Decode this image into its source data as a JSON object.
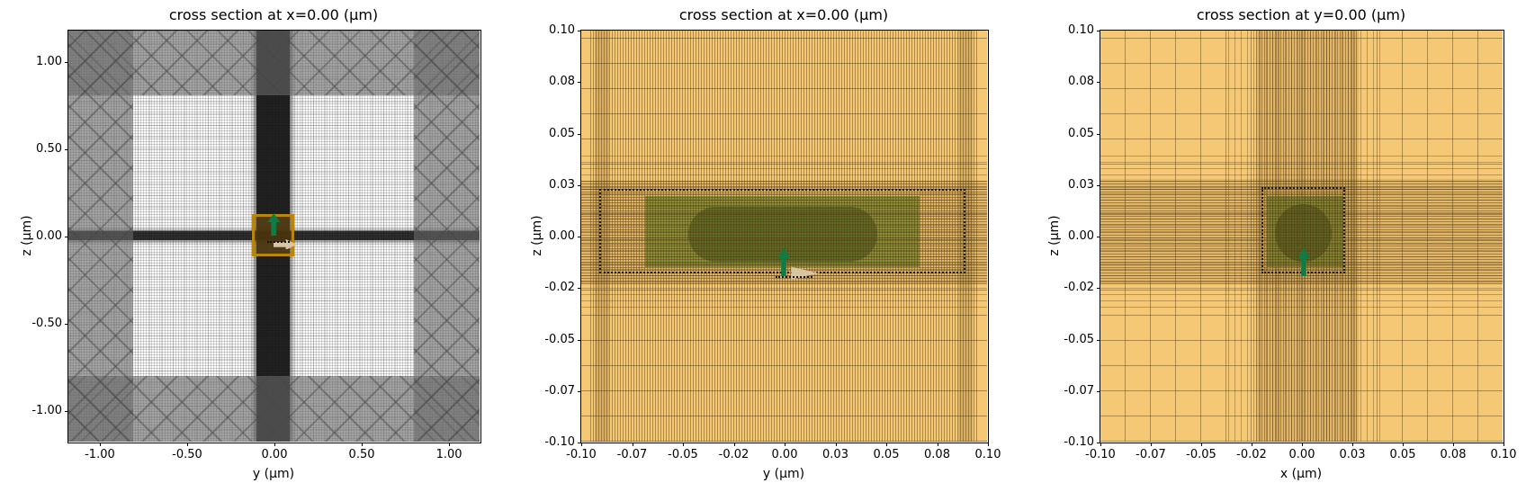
{
  "figure": {
    "background": "#ffffff"
  },
  "colors": {
    "pml_gray": "#696969",
    "mesh_gold": "#f5c876",
    "mode_plane_amber": "#b8860b",
    "structure_green": "#7a9132",
    "core_dark_green": "#4a6a26",
    "source_green": "#117b45",
    "propagation_tan": "#d8c5a4"
  },
  "panels": [
    {
      "id": "left",
      "title": "cross section at x=0.00 (μm)",
      "xlabel": "y (μm)",
      "ylabel": "z (μm)",
      "xlim": [
        -1.18,
        1.18
      ],
      "ylim": [
        -1.18,
        1.18
      ],
      "xticks": [
        {
          "v": -1.0,
          "l": "-1.00"
        },
        {
          "v": -0.5,
          "l": "-0.50"
        },
        {
          "v": 0.0,
          "l": "0.00"
        },
        {
          "v": 0.5,
          "l": "0.50"
        },
        {
          "v": 1.0,
          "l": "1.00"
        }
      ],
      "yticks": [
        {
          "v": -1.0,
          "l": "-1.00"
        },
        {
          "v": -0.5,
          "l": "-0.50"
        },
        {
          "v": 0.0,
          "l": "0.00"
        },
        {
          "v": 0.5,
          "l": "0.50"
        },
        {
          "v": 1.0,
          "l": "1.00"
        }
      ],
      "shapes": [
        {
          "name": "dense-mesh-vertical-strip",
          "t": "band",
          "cls": "p1-vstrip",
          "x": [
            -0.098,
            0.095
          ],
          "z": [
            -1.18,
            1.18
          ]
        },
        {
          "name": "dense-mesh-horizontal-strip",
          "t": "band",
          "cls": "p1-hstrip",
          "x": [
            -1.18,
            1.18
          ],
          "z": [
            -0.026,
            0.027
          ]
        },
        {
          "name": "mode-plane-box",
          "t": "rect",
          "cls": "p1-amber",
          "x": [
            -0.122,
            0.117
          ],
          "z": [
            -0.118,
            0.125
          ]
        },
        {
          "name": "pml-boundary-top",
          "t": "band",
          "cls": "pml",
          "x": [
            -1.18,
            1.18
          ],
          "z": [
            0.805,
            1.18
          ]
        },
        {
          "name": "pml-boundary-bottom",
          "t": "band",
          "cls": "pml",
          "x": [
            -1.18,
            1.18
          ],
          "z": [
            -1.18,
            -0.805
          ]
        },
        {
          "name": "pml-boundary-left",
          "t": "band",
          "cls": "pml",
          "x": [
            -1.18,
            -0.805
          ],
          "z": [
            -1.18,
            1.18
          ]
        },
        {
          "name": "pml-boundary-right",
          "t": "band",
          "cls": "pml",
          "x": [
            0.805,
            1.18
          ],
          "z": [
            -1.18,
            1.18
          ]
        },
        {
          "name": "propagation-arrow",
          "t": "arrow-right",
          "color": "#d8c5a4",
          "x": [
            0.002,
            0.137
          ],
          "z": [
            -0.063,
            -0.002
          ]
        },
        {
          "name": "propagation-dotted-line",
          "t": "dotline",
          "cls": "dotline",
          "x": [
            -0.036,
            0.092
          ],
          "z": [
            -0.031,
            -0.031
          ]
        },
        {
          "name": "source-polarization-arrow",
          "t": "arrow-up",
          "color": "#117b45",
          "x": [
            -0.038,
            0.037
          ],
          "z": [
            -0.002,
            0.127
          ]
        }
      ]
    },
    {
      "id": "middle",
      "title": "cross section at x=0.00 (μm)",
      "xlabel": "y (μm)",
      "ylabel": "z (μm)",
      "xlim": [
        -0.1,
        0.1
      ],
      "ylim": [
        -0.1,
        0.1
      ],
      "xticks": [
        {
          "v": -0.1,
          "l": "-0.10"
        },
        {
          "v": -0.075,
          "l": "-0.07"
        },
        {
          "v": -0.05,
          "l": "-0.05"
        },
        {
          "v": -0.025,
          "l": "-0.02"
        },
        {
          "v": 0.0,
          "l": "0.00"
        },
        {
          "v": 0.025,
          "l": "0.03"
        },
        {
          "v": 0.05,
          "l": "0.05"
        },
        {
          "v": 0.075,
          "l": "0.08"
        },
        {
          "v": 0.1,
          "l": "0.10"
        }
      ],
      "yticks": [
        {
          "v": -0.1,
          "l": "-0.10"
        },
        {
          "v": -0.075,
          "l": "-0.07"
        },
        {
          "v": -0.05,
          "l": "-0.05"
        },
        {
          "v": -0.025,
          "l": "-0.02"
        },
        {
          "v": 0.0,
          "l": "0.00"
        },
        {
          "v": 0.025,
          "l": "0.03"
        },
        {
          "v": 0.05,
          "l": "0.05"
        },
        {
          "v": 0.075,
          "l": "0.08"
        },
        {
          "v": 0.1,
          "l": "0.10"
        }
      ],
      "shapes": [
        {
          "name": "waveguide-slab",
          "t": "rect",
          "cls": "slab",
          "x": [
            -0.068,
            0.067
          ],
          "z": [
            -0.0155,
            0.019
          ]
        },
        {
          "name": "waveguide-core-stadium",
          "t": "rect",
          "cls": "stadium",
          "x": [
            -0.047,
            0.046
          ],
          "z": [
            -0.0125,
            0.014
          ]
        },
        {
          "name": "fine-mesh-region",
          "t": "band",
          "cls": "p2-vfine",
          "x": [
            -0.0952,
            0.0952
          ],
          "z": [
            -0.1,
            0.1
          ]
        },
        {
          "name": "graded-mesh-column-left",
          "t": "band",
          "cls": "p2-vgrad",
          "x": [
            -0.093,
            -0.086
          ],
          "z": [
            -0.1,
            0.1
          ]
        },
        {
          "name": "graded-mesh-column-right",
          "t": "band",
          "cls": "p2-vgrad",
          "x": [
            0.086,
            0.093
          ],
          "z": [
            -0.1,
            0.1
          ]
        },
        {
          "name": "coarse-horizontal-mesh",
          "t": "band",
          "cls": "p2-hsparse",
          "x": [
            -0.1,
            0.1
          ],
          "z": [
            -0.1,
            0.1
          ]
        },
        {
          "name": "graded-mesh-band",
          "t": "band",
          "cls": "p2-hmed",
          "x": [
            -0.1,
            0.1
          ],
          "z": [
            -0.035,
            0.04
          ]
        },
        {
          "name": "dense-mesh-band",
          "t": "band",
          "cls": "p2-hdense",
          "x": [
            -0.1,
            0.1
          ],
          "z": [
            -0.0235,
            0.0265
          ]
        },
        {
          "name": "mesh-override-outline",
          "t": "rect",
          "cls": "dotted",
          "x": [
            -0.0905,
            0.0895
          ],
          "z": [
            -0.0185,
            0.0225
          ]
        },
        {
          "name": "propagation-arrowhead",
          "t": "tri-right",
          "color": "#d8c5a4",
          "x": [
            0.003,
            0.0175
          ],
          "z": [
            -0.0215,
            -0.0148
          ]
        },
        {
          "name": "propagation-dotted-line",
          "t": "dotline",
          "cls": "dotline",
          "x": [
            -0.004,
            0.014
          ],
          "z": [
            -0.0195,
            -0.0195
          ]
        },
        {
          "name": "source-polarization-arrow",
          "t": "arrow-up",
          "color": "#117b45",
          "x": [
            -0.0031,
            0.0031
          ],
          "z": [
            -0.0195,
            -0.0055
          ]
        }
      ]
    },
    {
      "id": "right",
      "title": "cross section at y=0.00 (μm)",
      "xlabel": "x (μm)",
      "ylabel": "z (μm)",
      "xlim": [
        -0.1,
        0.1
      ],
      "ylim": [
        -0.1,
        0.1
      ],
      "xticks": [
        {
          "v": -0.1,
          "l": "-0.10"
        },
        {
          "v": -0.075,
          "l": "-0.07"
        },
        {
          "v": -0.05,
          "l": "-0.05"
        },
        {
          "v": -0.025,
          "l": "-0.02"
        },
        {
          "v": 0.0,
          "l": "0.00"
        },
        {
          "v": 0.025,
          "l": "0.03"
        },
        {
          "v": 0.05,
          "l": "0.05"
        },
        {
          "v": 0.075,
          "l": "0.08"
        },
        {
          "v": 0.1,
          "l": "0.10"
        }
      ],
      "yticks": [
        {
          "v": -0.1,
          "l": "-0.10"
        },
        {
          "v": -0.075,
          "l": "-0.07"
        },
        {
          "v": -0.05,
          "l": "-0.05"
        },
        {
          "v": -0.025,
          "l": "-0.02"
        },
        {
          "v": 0.0,
          "l": "0.00"
        },
        {
          "v": 0.025,
          "l": "0.03"
        },
        {
          "v": 0.05,
          "l": "0.05"
        },
        {
          "v": 0.075,
          "l": "0.08"
        },
        {
          "v": 0.1,
          "l": "0.10"
        }
      ],
      "shapes": [
        {
          "name": "cladding-square",
          "t": "rect",
          "cls": "slab",
          "x": [
            -0.017,
            0.021
          ],
          "z": [
            -0.0155,
            0.019
          ]
        },
        {
          "name": "core-circle",
          "t": "rect",
          "cls": "circle",
          "x": [
            -0.013,
            0.015
          ],
          "z": [
            -0.0125,
            0.0155
          ]
        },
        {
          "name": "graded-mesh-column",
          "t": "band",
          "cls": "p3-vmed",
          "x": [
            -0.036,
            0.042
          ],
          "z": [
            -0.1,
            0.1
          ]
        },
        {
          "name": "dense-mesh-column",
          "t": "band",
          "cls": "p3-vdense",
          "x": [
            -0.0225,
            0.0285
          ],
          "z": [
            -0.1,
            0.1
          ]
        },
        {
          "name": "graded-mesh-band",
          "t": "band",
          "cls": "p3-hmed",
          "x": [
            -0.1,
            0.1
          ],
          "z": [
            -0.035,
            0.04
          ]
        },
        {
          "name": "dense-mesh-band",
          "t": "band",
          "cls": "p3-hdense",
          "x": [
            -0.1,
            0.1
          ],
          "z": [
            -0.0235,
            0.0275
          ]
        },
        {
          "name": "mesh-override-outline",
          "t": "rect",
          "cls": "dotted",
          "x": [
            -0.0195,
            0.022
          ],
          "z": [
            -0.0185,
            0.0235
          ]
        },
        {
          "name": "source-polarization-arrow",
          "t": "arrow-up",
          "color": "#117b45",
          "x": [
            -0.002,
            0.0042
          ],
          "z": [
            -0.0195,
            -0.0055
          ]
        }
      ]
    }
  ],
  "chart_data": [
    {
      "type": "heatmap",
      "subtype": "simulation-cross-section-with-mesh",
      "title": "cross section at x=0.00 (μm)",
      "xlabel": "y (μm)",
      "ylabel": "z (μm)",
      "xlim": [
        -1.18,
        1.18
      ],
      "ylim": [
        -1.18,
        1.18
      ],
      "xtick_labels": [
        "-1.00",
        "-0.50",
        "0.00",
        "0.50",
        "1.00"
      ],
      "ytick_labels": [
        "-1.00",
        "-0.50",
        "0.00",
        "0.50",
        "1.00"
      ],
      "grid": "nonuniform FDTD mesh, fine cells near structure",
      "regions": [
        {
          "name": "pml-absorber-frame",
          "extent": "|y|>0.8 and |z|>0.8 to plot edge",
          "style": "gray crosshatch, darker at corners"
        },
        {
          "name": "dense-mesh-vertical-strip",
          "y": [
            -0.098,
            0.095
          ],
          "z": [
            -1.18,
            1.18
          ],
          "style": "near-black"
        },
        {
          "name": "dense-mesh-horizontal-strip",
          "y": [
            -1.18,
            1.18
          ],
          "z": [
            -0.026,
            0.027
          ],
          "style": "near-black"
        },
        {
          "name": "mode-plane-box",
          "y": [
            -0.122,
            0.117
          ],
          "z": [
            -0.118,
            0.125
          ],
          "color": "#b8860b"
        },
        {
          "name": "source-polarization-arrow",
          "at": [
            0.0,
            0.0
          ],
          "direction": "up",
          "color": "#117b45"
        },
        {
          "name": "propagation-arrow",
          "at": [
            0.07,
            -0.03
          ],
          "direction": "right",
          "color": "#d8c5a4"
        }
      ]
    },
    {
      "type": "heatmap",
      "subtype": "simulation-cross-section-with-mesh",
      "title": "cross section at x=0.00 (μm)",
      "xlabel": "y (μm)",
      "ylabel": "z (μm)",
      "xlim": [
        -0.1,
        0.1
      ],
      "ylim": [
        -0.1,
        0.1
      ],
      "xtick_labels": [
        "-0.10",
        "-0.07",
        "-0.05",
        "-0.02",
        "0.00",
        "0.03",
        "0.05",
        "0.08",
        "0.10"
      ],
      "ytick_labels": [
        "-0.10",
        "-0.07",
        "-0.05",
        "-0.02",
        "0.00",
        "0.03",
        "0.05",
        "0.08",
        "0.10"
      ],
      "grid": "gold background with graded mesh lines, dense band around structure",
      "regions": [
        {
          "name": "waveguide-slab",
          "y": [
            -0.068,
            0.067
          ],
          "z": [
            -0.0155,
            0.019
          ],
          "color": "#7a9132"
        },
        {
          "name": "waveguide-core-stadium",
          "y": [
            -0.047,
            0.046
          ],
          "z": [
            -0.0125,
            0.014
          ],
          "color": "#4a6a26"
        },
        {
          "name": "mesh-override-outline",
          "y": [
            -0.0905,
            0.0895
          ],
          "z": [
            -0.0185,
            0.0225
          ],
          "style": "black dotted rectangle"
        },
        {
          "name": "source-polarization-arrow",
          "at": [
            0.0,
            -0.012
          ],
          "direction": "up",
          "color": "#117b45"
        },
        {
          "name": "propagation-arrowhead",
          "at": [
            0.01,
            -0.018
          ],
          "direction": "right",
          "color": "#d8c5a4"
        }
      ]
    },
    {
      "type": "heatmap",
      "subtype": "simulation-cross-section-with-mesh",
      "title": "cross section at y=0.00 (μm)",
      "xlabel": "x (μm)",
      "ylabel": "z (μm)",
      "xlim": [
        -0.1,
        0.1
      ],
      "ylim": [
        -0.1,
        0.1
      ],
      "xtick_labels": [
        "-0.10",
        "-0.07",
        "-0.05",
        "-0.02",
        "0.00",
        "0.03",
        "0.05",
        "0.08",
        "0.10"
      ],
      "ytick_labels": [
        "-0.10",
        "-0.07",
        "-0.05",
        "-0.02",
        "0.00",
        "0.03",
        "0.05",
        "0.08",
        "0.10"
      ],
      "grid": "gold background with coarse grid, dense mesh cross centered on structure",
      "regions": [
        {
          "name": "cladding-square",
          "x": [
            -0.017,
            0.021
          ],
          "z": [
            -0.0155,
            0.019
          ],
          "color": "#7a9132"
        },
        {
          "name": "core-circle",
          "center": [
            0.001,
            0.0015
          ],
          "radius": 0.014,
          "color": "#4a6a26"
        },
        {
          "name": "mesh-override-outline",
          "x": [
            -0.0195,
            0.022
          ],
          "z": [
            -0.0185,
            0.0235
          ],
          "style": "black dotted rectangle"
        },
        {
          "name": "source-polarization-arrow",
          "at": [
            0.001,
            -0.012
          ],
          "direction": "up",
          "color": "#117b45"
        }
      ]
    }
  ]
}
